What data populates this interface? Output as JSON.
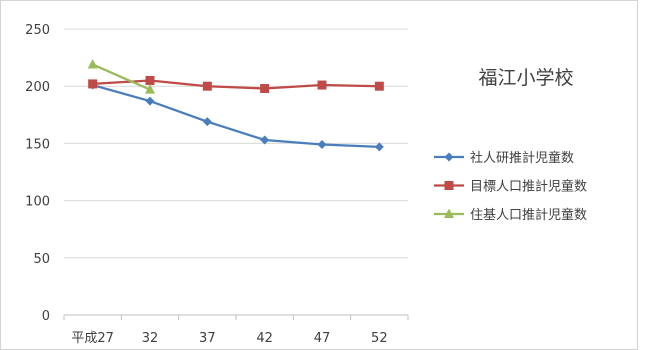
{
  "chart_data": {
    "type": "line",
    "title": "福江小学校",
    "categories": [
      "平成27",
      "32",
      "37",
      "42",
      "47",
      "52"
    ],
    "ylim": [
      0,
      250
    ],
    "yticks": [
      0,
      50,
      100,
      150,
      200,
      250
    ],
    "grid": "horizontal",
    "legend_position": "right",
    "series": [
      {
        "name": "社人研推計児童数",
        "color": "#4a7ebb",
        "marker": "diamond",
        "values": [
          201,
          187,
          169,
          153,
          149,
          147
        ]
      },
      {
        "name": "目標人口推計児童数",
        "color": "#be4b48",
        "marker": "square",
        "values": [
          202,
          205,
          200,
          198,
          201,
          200
        ]
      },
      {
        "name": "住基人口推計児童数",
        "color": "#9bbb59",
        "marker": "triangle",
        "values": [
          219,
          197,
          null,
          null,
          null,
          null
        ]
      }
    ]
  }
}
